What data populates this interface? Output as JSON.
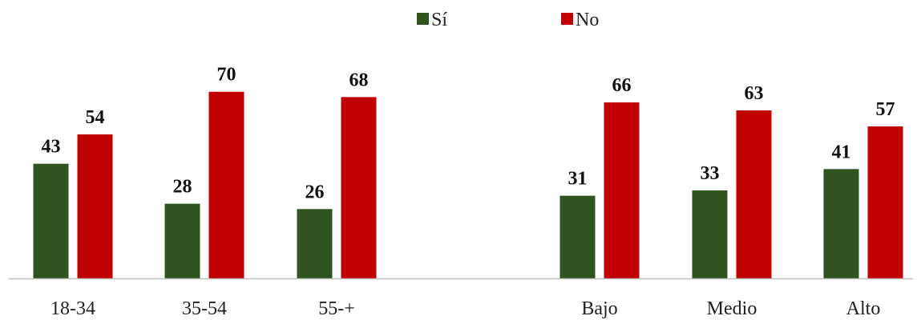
{
  "chart_data": {
    "type": "bar",
    "categories": [
      "18-34",
      "35-54",
      "55-+",
      "",
      "Bajo",
      "Medio",
      "Alto"
    ],
    "series": [
      {
        "name": "Sí",
        "color": "#2f5420",
        "values": [
          43,
          28,
          26,
          null,
          31,
          33,
          41
        ]
      },
      {
        "name": "No",
        "color": "#c00000",
        "values": [
          54,
          70,
          68,
          null,
          66,
          63,
          57
        ]
      }
    ],
    "ylim": [
      0,
      100
    ],
    "grid": false,
    "legend_position": "top-center",
    "data_labels": true
  }
}
